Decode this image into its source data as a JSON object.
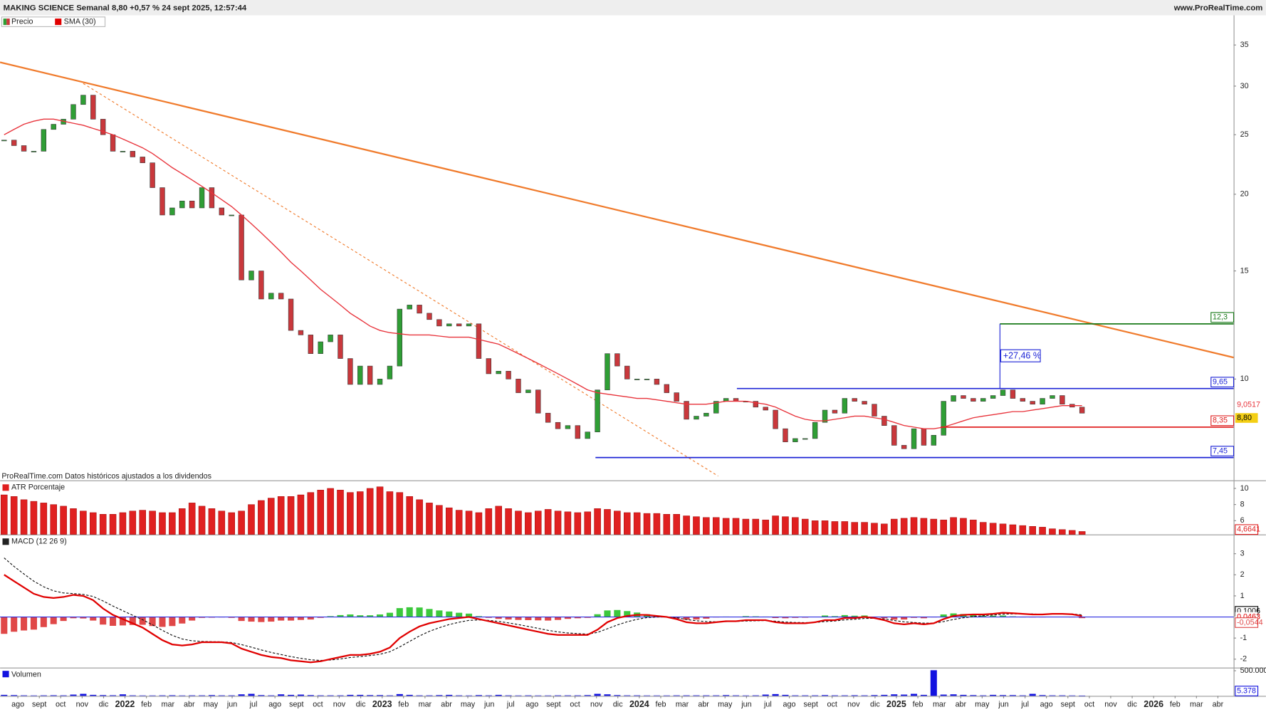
{
  "header": {
    "title": "MAKING SCIENCE Semanal 8,80 +0,57 % 24 sept 2025, 12:57:44",
    "site": "www.ProRealTime.com"
  },
  "time_axis": {
    "xlim": [
      -0.408,
      124.33
    ],
    "xticks": [
      {
        "value": 1.39,
        "label": "ago"
      },
      {
        "value": 3.56,
        "label": "sept"
      },
      {
        "value": 5.72,
        "label": "oct"
      },
      {
        "value": 7.89,
        "label": "nov"
      },
      {
        "value": 10.06,
        "label": "dic"
      },
      {
        "value": 12.22,
        "label": "2022"
      },
      {
        "value": 14.39,
        "label": "feb"
      },
      {
        "value": 16.56,
        "label": "mar"
      },
      {
        "value": 18.72,
        "label": "abr"
      },
      {
        "value": 20.89,
        "label": "may"
      },
      {
        "value": 23.06,
        "label": "jun"
      },
      {
        "value": 25.22,
        "label": "jul"
      },
      {
        "value": 27.39,
        "label": "ago"
      },
      {
        "value": 29.56,
        "label": "sept"
      },
      {
        "value": 31.73,
        "label": "oct"
      },
      {
        "value": 33.89,
        "label": "nov"
      },
      {
        "value": 36.06,
        "label": "dic"
      },
      {
        "value": 38.23,
        "label": "2023"
      },
      {
        "value": 40.39,
        "label": "feb"
      },
      {
        "value": 42.56,
        "label": "mar"
      },
      {
        "value": 44.73,
        "label": "abr"
      },
      {
        "value": 46.89,
        "label": "may"
      },
      {
        "value": 49.06,
        "label": "jun"
      },
      {
        "value": 51.23,
        "label": "jul"
      },
      {
        "value": 53.39,
        "label": "ago"
      },
      {
        "value": 55.56,
        "label": "sept"
      },
      {
        "value": 57.73,
        "label": "oct"
      },
      {
        "value": 59.9,
        "label": "nov"
      },
      {
        "value": 62.06,
        "label": "dic"
      },
      {
        "value": 64.23,
        "label": "2024"
      },
      {
        "value": 66.4,
        "label": "feb"
      },
      {
        "value": 68.56,
        "label": "mar"
      },
      {
        "value": 70.73,
        "label": "abr"
      },
      {
        "value": 72.9,
        "label": "may"
      },
      {
        "value": 75.07,
        "label": "jun"
      },
      {
        "value": 77.23,
        "label": "jul"
      },
      {
        "value": 79.4,
        "label": "ago"
      },
      {
        "value": 81.57,
        "label": "sept"
      },
      {
        "value": 83.73,
        "label": "oct"
      },
      {
        "value": 85.9,
        "label": "nov"
      },
      {
        "value": 88.07,
        "label": "dic"
      },
      {
        "value": 90.23,
        "label": "2025"
      },
      {
        "value": 92.4,
        "label": "feb"
      },
      {
        "value": 94.57,
        "label": "mar"
      },
      {
        "value": 96.74,
        "label": "abr"
      },
      {
        "value": 98.9,
        "label": "may"
      },
      {
        "value": 101.07,
        "label": "jun"
      },
      {
        "value": 103.24,
        "label": "jul"
      },
      {
        "value": 105.4,
        "label": "ago"
      },
      {
        "value": 107.57,
        "label": "sept"
      },
      {
        "value": 109.74,
        "label": "oct"
      },
      {
        "value": 111.9,
        "label": "nov"
      },
      {
        "value": 114.07,
        "label": "dic"
      },
      {
        "value": 116.24,
        "label": "2026"
      },
      {
        "value": 118.41,
        "label": "feb"
      },
      {
        "value": 120.57,
        "label": "mar"
      },
      {
        "value": 122.74,
        "label": "abr"
      }
    ]
  },
  "chart_data": [
    {
      "type": "candlestick",
      "name": "Precio",
      "up_color": "#2f9e35",
      "down_color": "#c9383c",
      "log": true,
      "ylim": [
        6.84,
        39
      ],
      "yticks": [
        35,
        30,
        25,
        20,
        15,
        10
      ],
      "note": "ProRealTime.com Datos históricos ajustados a los dividendos",
      "close": [
        24.5,
        24,
        23.5,
        23.5,
        25.5,
        26,
        26.5,
        28,
        29,
        26.5,
        25,
        23.5,
        23.5,
        23,
        22.5,
        20.5,
        18.5,
        19,
        19.5,
        19,
        20.5,
        19,
        18.5,
        18.5,
        14.5,
        15,
        13.5,
        13.8,
        13.5,
        12,
        11.8,
        11,
        11.5,
        11.8,
        10.8,
        9.8,
        10.5,
        9.8,
        10,
        10.5,
        13,
        13.2,
        12.8,
        12.5,
        12.2,
        12.3,
        12.2,
        12.3,
        10.8,
        10.2,
        10.3,
        10,
        9.5,
        9.6,
        8.8,
        8.5,
        8.3,
        8.4,
        8.0,
        8.2,
        9.6,
        11,
        10.5,
        10,
        10,
        10,
        9.8,
        9.5,
        9.2,
        8.6,
        8.7,
        8.8,
        9.2,
        9.3,
        9.2,
        9.2,
        9.0,
        8.9,
        8.3,
        7.9,
        8.0,
        8.0,
        8.5,
        8.9,
        8.8,
        9.3,
        9.2,
        9.1,
        8.7,
        8.4,
        7.8,
        7.7,
        8.3,
        7.8,
        8.1,
        9.2,
        9.4,
        9.3,
        9.2,
        9.3,
        9.4,
        9.6,
        9.3,
        9.2,
        9.1,
        9.3,
        9.4,
        9.1,
        9.0,
        8.8
      ],
      "close_label": "8,80",
      "sma": {
        "name": "SMA (30)",
        "color": "#e8333b",
        "value_label": "9,0517",
        "values": [
          25,
          25.5,
          26,
          26.3,
          26.5,
          26.5,
          26.3,
          26.1,
          25.9,
          25.6,
          25.3,
          25,
          24.6,
          24.2,
          23.8,
          23.3,
          22.7,
          22.1,
          21.6,
          21.1,
          20.6,
          20.1,
          19.6,
          19.1,
          18.5,
          17.9,
          17.3,
          16.7,
          16.1,
          15.5,
          15,
          14.5,
          14,
          13.6,
          13.2,
          12.8,
          12.5,
          12.2,
          12,
          11.9,
          11.85,
          11.8,
          11.8,
          11.8,
          11.75,
          11.7,
          11.7,
          11.7,
          11.6,
          11.5,
          11.4,
          11.2,
          11.0,
          10.8,
          10.6,
          10.4,
          10.2,
          10.0,
          9.8,
          9.6,
          9.5,
          9.45,
          9.4,
          9.35,
          9.3,
          9.3,
          9.25,
          9.2,
          9.15,
          9.1,
          9.1,
          9.1,
          9.15,
          9.2,
          9.2,
          9.2,
          9.15,
          9.1,
          9.0,
          8.85,
          8.7,
          8.6,
          8.55,
          8.55,
          8.6,
          8.65,
          8.7,
          8.7,
          8.65,
          8.6,
          8.5,
          8.4,
          8.35,
          8.3,
          8.3,
          8.35,
          8.45,
          8.55,
          8.65,
          8.7,
          8.75,
          8.8,
          8.85,
          8.85,
          8.9,
          8.95,
          9.0,
          9.05,
          9.05,
          9.0517
        ]
      },
      "trendlines": [
        {
          "color": "#f07b2c",
          "dashed": false,
          "x": [
            -0.408,
            124.33
          ],
          "y": [
            32.8,
            10.84
          ]
        },
        {
          "color": "#f07b2c",
          "dashed": true,
          "x": [
            8,
            72.2
          ],
          "y": [
            30.3,
            6.95
          ]
        }
      ],
      "levels": [
        {
          "value": 12.3,
          "label": "12,3",
          "color": "#1a7a1a",
          "from": 100.7
        },
        {
          "value": 9.65,
          "label": "9,65",
          "color": "#1d24d6",
          "from": 74.1
        },
        {
          "value": 8.35,
          "label": "8,35",
          "color": "#e02020",
          "from": 94.7
        },
        {
          "value": 7.45,
          "label": "7,45",
          "color": "#1d24d6",
          "from": 59.8
        }
      ],
      "measure": {
        "x": 100.7,
        "from": 9.65,
        "to": 12.3,
        "label": "+27,46 %",
        "color": "#1d24d6"
      }
    },
    {
      "type": "bar",
      "name": "ATR Porcentaje",
      "color": "#e02020",
      "ylim": [
        4.3,
        10.8
      ],
      "yticks": [
        10,
        8,
        6
      ],
      "value_label": "4,6641",
      "values": [
        9.2,
        9,
        8.6,
        8.4,
        8.2,
        8,
        7.8,
        7.5,
        7.2,
        7,
        6.8,
        6.8,
        7,
        7.2,
        7.3,
        7.2,
        7.0,
        7.0,
        7.5,
        8.2,
        7.8,
        7.5,
        7.2,
        7,
        7.2,
        8,
        8.5,
        8.8,
        9,
        9,
        9.2,
        9.5,
        9.8,
        10,
        9.8,
        9.5,
        9.6,
        10,
        10.2,
        9.6,
        9.5,
        9,
        8.6,
        8.2,
        7.9,
        7.6,
        7.3,
        7.2,
        7.0,
        7.5,
        7.8,
        7.5,
        7.2,
        7.0,
        7.2,
        7.4,
        7.2,
        7.1,
        7.0,
        7.1,
        7.5,
        7.4,
        7.2,
        7.0,
        7.0,
        6.9,
        6.9,
        6.8,
        6.8,
        6.6,
        6.5,
        6.4,
        6.4,
        6.3,
        6.3,
        6.2,
        6.2,
        6.1,
        6.6,
        6.5,
        6.4,
        6.2,
        6.0,
        6.0,
        5.9,
        5.9,
        5.8,
        5.8,
        5.7,
        5.6,
        6.2,
        6.3,
        6.4,
        6.3,
        6.2,
        6.1,
        6.4,
        6.3,
        6.1,
        5.8,
        5.7,
        5.6,
        5.5,
        5.4,
        5.3,
        5.2,
        5.0,
        4.9,
        4.8,
        4.6641
      ]
    },
    {
      "type": "macd",
      "name": "MACD (12 26 9)",
      "ylim": [
        -2.4,
        3.8
      ],
      "yticks": [
        3,
        2,
        1,
        -1,
        -2
      ],
      "zero_color": "#2a2ae0",
      "macd": {
        "color": "#e00000",
        "value_label": "0,0463",
        "values": [
          2.0,
          1.7,
          1.4,
          1.1,
          0.95,
          0.9,
          0.95,
          1.05,
          1.0,
          0.8,
          0.4,
          0.1,
          -0.1,
          -0.3,
          -0.5,
          -0.8,
          -1.1,
          -1.3,
          -1.35,
          -1.3,
          -1.2,
          -1.2,
          -1.2,
          -1.25,
          -1.5,
          -1.65,
          -1.8,
          -1.9,
          -1.95,
          -2.05,
          -2.1,
          -2.15,
          -2.1,
          -2.0,
          -1.9,
          -1.8,
          -1.8,
          -1.75,
          -1.65,
          -1.45,
          -1.0,
          -0.7,
          -0.45,
          -0.3,
          -0.2,
          -0.1,
          -0.05,
          0.0,
          -0.1,
          -0.2,
          -0.3,
          -0.4,
          -0.5,
          -0.6,
          -0.7,
          -0.8,
          -0.85,
          -0.85,
          -0.85,
          -0.85,
          -0.6,
          -0.25,
          -0.05,
          0.05,
          0.1,
          0.1,
          0.05,
          0.0,
          -0.1,
          -0.25,
          -0.3,
          -0.3,
          -0.25,
          -0.2,
          -0.2,
          -0.15,
          -0.15,
          -0.15,
          -0.25,
          -0.3,
          -0.3,
          -0.3,
          -0.25,
          -0.15,
          -0.15,
          -0.05,
          -0.05,
          0.0,
          -0.05,
          -0.15,
          -0.3,
          -0.35,
          -0.3,
          -0.35,
          -0.3,
          -0.1,
          0.05,
          0.1,
          0.12,
          0.12,
          0.15,
          0.2,
          0.18,
          0.15,
          0.12,
          0.12,
          0.15,
          0.15,
          0.13,
          0.0463
        ]
      },
      "signal": {
        "color": "#111111",
        "value_label": "0,1006",
        "values": [
          2.8,
          2.4,
          2.04,
          1.7,
          1.43,
          1.24,
          1.14,
          1.11,
          1.07,
          0.97,
          0.76,
          0.52,
          0.3,
          0.08,
          -0.13,
          -0.37,
          -0.63,
          -0.87,
          -1.04,
          -1.13,
          -1.16,
          -1.17,
          -1.18,
          -1.21,
          -1.31,
          -1.43,
          -1.56,
          -1.68,
          -1.78,
          -1.88,
          -1.96,
          -2.03,
          -2.06,
          -2.04,
          -1.99,
          -1.92,
          -1.88,
          -1.83,
          -1.77,
          -1.65,
          -1.42,
          -1.16,
          -0.9,
          -0.68,
          -0.51,
          -0.36,
          -0.25,
          -0.16,
          -0.14,
          -0.16,
          -0.21,
          -0.28,
          -0.36,
          -0.45,
          -0.54,
          -0.63,
          -0.71,
          -0.76,
          -0.79,
          -0.81,
          -0.73,
          -0.56,
          -0.38,
          -0.23,
          -0.11,
          -0.03,
          0.0,
          0.0,
          -0.04,
          -0.12,
          -0.18,
          -0.22,
          -0.23,
          -0.22,
          -0.21,
          -0.19,
          -0.18,
          -0.17,
          -0.2,
          -0.24,
          -0.26,
          -0.27,
          -0.26,
          -0.22,
          -0.19,
          -0.14,
          -0.11,
          -0.07,
          -0.06,
          -0.09,
          -0.17,
          -0.23,
          -0.26,
          -0.29,
          -0.29,
          -0.22,
          -0.12,
          -0.04,
          0.02,
          0.06,
          0.09,
          0.13,
          0.15,
          0.15,
          0.14,
          0.13,
          0.14,
          0.14,
          0.14,
          0.1006
        ]
      },
      "histogram": {
        "up_color": "#3cc83c",
        "down_color": "#e04848",
        "value_label": "-0,0544",
        "values": [
          -0.8,
          -0.7,
          -0.64,
          -0.6,
          -0.48,
          -0.34,
          -0.19,
          -0.06,
          -0.07,
          -0.17,
          -0.36,
          -0.42,
          -0.4,
          -0.38,
          -0.37,
          -0.43,
          -0.47,
          -0.43,
          -0.31,
          -0.17,
          -0.04,
          -0.03,
          -0.02,
          -0.04,
          -0.19,
          -0.22,
          -0.24,
          -0.22,
          -0.17,
          -0.17,
          -0.14,
          -0.12,
          -0.04,
          0.04,
          0.09,
          0.12,
          0.08,
          0.08,
          0.12,
          0.2,
          0.42,
          0.46,
          0.45,
          0.38,
          0.31,
          0.26,
          0.2,
          0.16,
          0.04,
          -0.04,
          -0.09,
          -0.12,
          -0.14,
          -0.15,
          -0.16,
          -0.17,
          -0.14,
          -0.09,
          -0.06,
          -0.04,
          0.13,
          0.31,
          0.33,
          0.28,
          0.21,
          0.13,
          0.05,
          0.0,
          -0.06,
          -0.13,
          -0.12,
          -0.08,
          -0.02,
          0.02,
          0.01,
          0.04,
          0.03,
          0.02,
          -0.05,
          -0.06,
          -0.04,
          -0.03,
          0.01,
          0.07,
          0.04,
          0.09,
          0.06,
          0.07,
          0.01,
          -0.06,
          -0.13,
          -0.12,
          -0.04,
          -0.06,
          -0.01,
          0.12,
          0.17,
          0.14,
          0.1,
          0.06,
          0.06,
          0.07,
          0.03,
          0.0,
          -0.02,
          -0.01,
          0.01,
          0.01,
          -0.01,
          -0.0544
        ]
      }
    },
    {
      "type": "bar",
      "name": "Volumen",
      "color": "#1212e0",
      "ylim": [
        0,
        530000
      ],
      "yticks": [
        {
          "value": 500000,
          "label": "500.000"
        }
      ],
      "value_label": "5.378",
      "values": [
        20000,
        15000,
        10000,
        8000,
        10000,
        12000,
        10000,
        25000,
        40000,
        20000,
        15000,
        12000,
        30000,
        10000,
        8000,
        8000,
        10000,
        12000,
        8000,
        10000,
        10000,
        15000,
        10000,
        10000,
        30000,
        40000,
        15000,
        10000,
        30000,
        20000,
        25000,
        15000,
        10000,
        10000,
        10000,
        20000,
        20000,
        15000,
        15000,
        10000,
        35000,
        20000,
        10000,
        10000,
        15000,
        20000,
        10000,
        8000,
        15000,
        10000,
        20000,
        10000,
        8000,
        10000,
        8000,
        8000,
        10000,
        10000,
        10000,
        15000,
        40000,
        30000,
        15000,
        10000,
        10000,
        8000,
        8000,
        8000,
        10000,
        10000,
        10000,
        10000,
        10000,
        15000,
        10000,
        8000,
        10000,
        25000,
        35000,
        20000,
        10000,
        10000,
        10000,
        15000,
        10000,
        10000,
        12000,
        10000,
        15000,
        20000,
        30000,
        25000,
        40000,
        20000,
        510000,
        25000,
        30000,
        20000,
        15000,
        10000,
        20000,
        15000,
        15000,
        10000,
        40000,
        15000,
        10000,
        10000,
        8000,
        5378
      ]
    }
  ]
}
